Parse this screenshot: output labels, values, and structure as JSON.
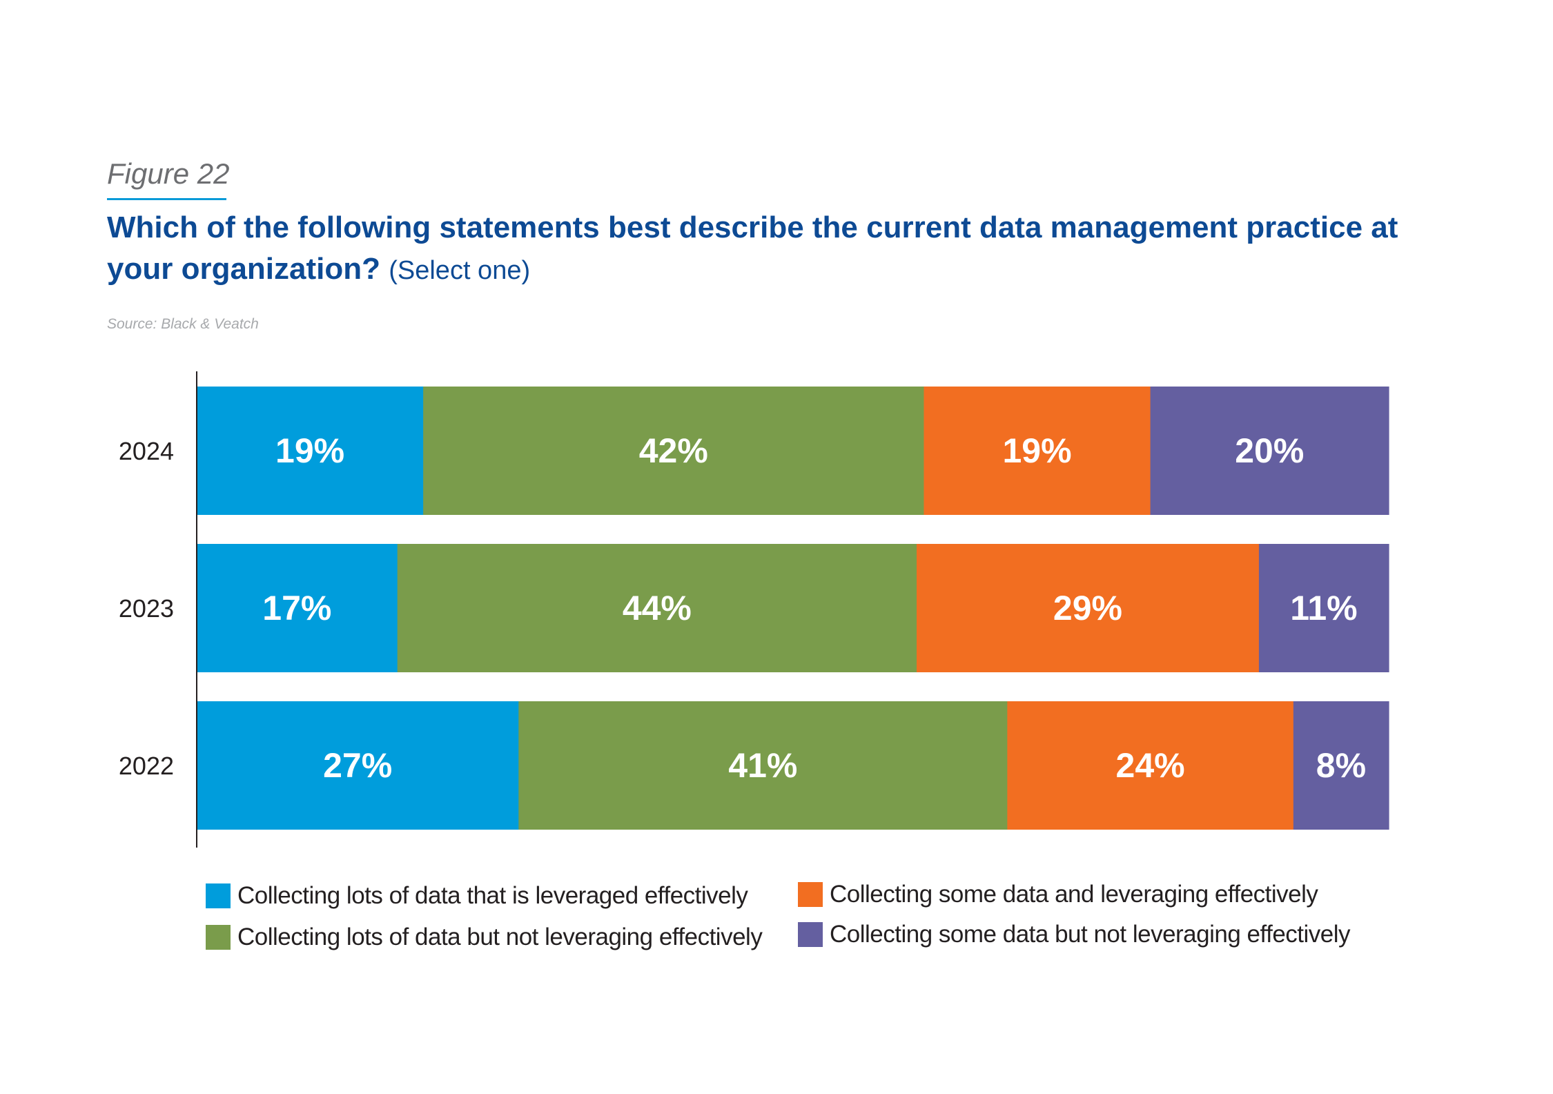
{
  "figure_label": "Figure 22",
  "title": "Which of the following statements best describe the current data management practice at your organization?",
  "title_suffix": "(Select one)",
  "source": "Source: Black & Veatch",
  "colors": {
    "accent_rule": "#0a9ad8",
    "title": "#0d4a94",
    "series": [
      "#009ddc",
      "#7a9c4b",
      "#f26e21",
      "#645fa0"
    ]
  },
  "chart_data": {
    "type": "bar",
    "orientation": "horizontal",
    "stacked": true,
    "categories": [
      "2024",
      "2023",
      "2022"
    ],
    "series": [
      {
        "name": "Collecting lots of data that is leveraged effectively",
        "values": [
          19,
          17,
          27
        ],
        "labels": [
          "19%",
          "17%",
          "27%"
        ]
      },
      {
        "name": "Collecting lots of data but not leveraging effectively",
        "values": [
          42,
          44,
          41
        ],
        "labels": [
          "42%",
          "44%",
          "41%"
        ]
      },
      {
        "name": "Collecting some data and leveraging effectively",
        "values": [
          19,
          29,
          24
        ],
        "labels": [
          "19%",
          "29%",
          "24%"
        ]
      },
      {
        "name": "Collecting some data but not leveraging effectively",
        "values": [
          20,
          11,
          8
        ],
        "labels": [
          "20%",
          "11%",
          "8%"
        ]
      }
    ],
    "xlim": [
      0,
      100
    ],
    "unit": "%",
    "legend": "bottom"
  }
}
